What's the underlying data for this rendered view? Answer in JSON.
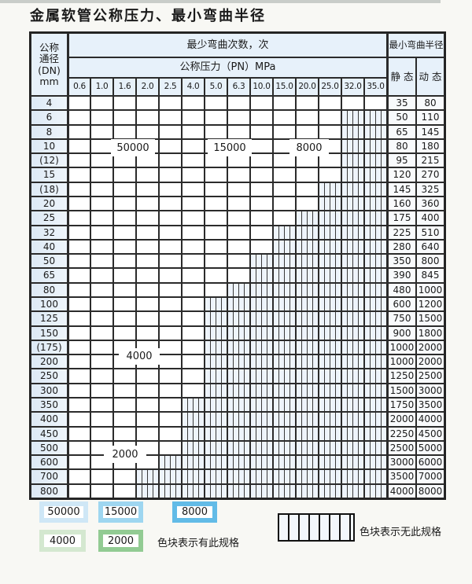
{
  "title": "金属软管公称压力、最小弯曲半径",
  "table": {
    "header": {
      "dn_lines": [
        "公称",
        "通径",
        "(DN)",
        "mm"
      ],
      "bend_cycles": "最少弯曲次数，次",
      "pressure": "公称压力（PN）MPa",
      "min_bend_radius": "最小弯曲半径",
      "static": "静 态",
      "dynamic": "动 态"
    },
    "pressures": [
      "0.6",
      "1.0",
      "1.6",
      "2.0",
      "2.5",
      "4.0",
      "5.0",
      "6.3",
      "10.0",
      "15.0",
      "20.0",
      "25.0",
      "32.0",
      "35.0"
    ],
    "rows": [
      {
        "dn": "4",
        "family": "blue",
        "colored_through": "35.0",
        "static": "35",
        "dynamic": "80"
      },
      {
        "dn": "6",
        "family": "blue",
        "colored_through": "25.0",
        "static": "50",
        "dynamic": "110"
      },
      {
        "dn": "8",
        "family": "blue",
        "colored_through": "25.0",
        "static": "65",
        "dynamic": "145"
      },
      {
        "dn": "10",
        "family": "blue",
        "colored_through": "25.0",
        "static": "80",
        "dynamic": "180"
      },
      {
        "dn": "(12)",
        "family": "blue",
        "colored_through": "25.0",
        "static": "95",
        "dynamic": "215"
      },
      {
        "dn": "15",
        "family": "blue",
        "colored_through": "25.0",
        "static": "120",
        "dynamic": "270"
      },
      {
        "dn": "(18)",
        "family": "blue",
        "colored_through": "20.0",
        "static": "145",
        "dynamic": "325"
      },
      {
        "dn": "20",
        "family": "blue",
        "colored_through": "20.0",
        "static": "160",
        "dynamic": "360"
      },
      {
        "dn": "25",
        "family": "blue",
        "colored_through": "15.0",
        "static": "175",
        "dynamic": "400"
      },
      {
        "dn": "32",
        "family": "blue",
        "colored_through": "10.0",
        "static": "225",
        "dynamic": "510"
      },
      {
        "dn": "40",
        "family": "blue",
        "colored_through": "10.0",
        "static": "280",
        "dynamic": "640"
      },
      {
        "dn": "50",
        "family": "blue",
        "colored_through": "6.3",
        "static": "350",
        "dynamic": "800"
      },
      {
        "dn": "65",
        "family": "blue",
        "colored_through": "6.3",
        "static": "390",
        "dynamic": "845"
      },
      {
        "dn": "80",
        "family": "blue",
        "colored_through": "5.0",
        "static": "480",
        "dynamic": "1000"
      },
      {
        "dn": "100",
        "family": "green",
        "colored_through": "4.0",
        "static": "600",
        "dynamic": "1200"
      },
      {
        "dn": "125",
        "family": "green",
        "colored_through": "4.0",
        "static": "750",
        "dynamic": "1500"
      },
      {
        "dn": "150",
        "family": "green",
        "colored_through": "4.0",
        "static": "900",
        "dynamic": "1800"
      },
      {
        "dn": "(175)",
        "family": "green",
        "colored_through": "4.0",
        "static": "1000",
        "dynamic": "2000"
      },
      {
        "dn": "200",
        "family": "green",
        "colored_through": "4.0",
        "static": "1000",
        "dynamic": "2000"
      },
      {
        "dn": "250",
        "family": "green",
        "colored_through": "4.0",
        "static": "1250",
        "dynamic": "2500"
      },
      {
        "dn": "300",
        "family": "green",
        "colored_through": "4.0",
        "static": "1500",
        "dynamic": "3000"
      },
      {
        "dn": "350",
        "family": "green",
        "colored_through": "2.5",
        "static": "1750",
        "dynamic": "3500"
      },
      {
        "dn": "400",
        "family": "green",
        "colored_through": "2.5",
        "static": "2000",
        "dynamic": "4000"
      },
      {
        "dn": "450",
        "family": "green",
        "colored_through": "2.5",
        "static": "2250",
        "dynamic": "4500"
      },
      {
        "dn": "500",
        "family": "green",
        "colored_through": "2.5",
        "static": "2500",
        "dynamic": "5000"
      },
      {
        "dn": "600",
        "family": "green",
        "colored_through": "2.0",
        "static": "3000",
        "dynamic": "6000"
      },
      {
        "dn": "700",
        "family": "green",
        "colored_through": "1.6",
        "static": "3500",
        "dynamic": "7000"
      },
      {
        "dn": "800",
        "family": "green",
        "colored_through": "1.6",
        "static": "4000",
        "dynamic": "8000"
      }
    ]
  },
  "overlay_labels": {
    "b50000": "50000",
    "b15000": "15000",
    "b8000": "8000",
    "g4000": "4000",
    "g2000": "2000"
  },
  "legend": {
    "swatches": [
      {
        "label": "50000",
        "color": "#cfe7f6"
      },
      {
        "label": "15000",
        "color": "#9ed6f0"
      },
      {
        "label": "8000",
        "color": "#62bbe7"
      },
      {
        "label": "4000",
        "color": "#d4e8d0"
      },
      {
        "label": "2000",
        "color": "#92cb93"
      }
    ],
    "has_spec": "色块表示有此规格",
    "no_spec": "色块表示无此规格"
  },
  "palette": {
    "blue_light": "#e9f3fb",
    "blue_dark_top": "#55b5e5",
    "blue_dark_bottom": "#7ec7eb",
    "green_light": "#eaf2e6",
    "green_dark_first": "#c6e2c0",
    "green_dark_last": "#85c585",
    "hatch_bg": "#eef4fb",
    "grid": "#2b2b2b",
    "header_bg": "#e7f1fa"
  }
}
